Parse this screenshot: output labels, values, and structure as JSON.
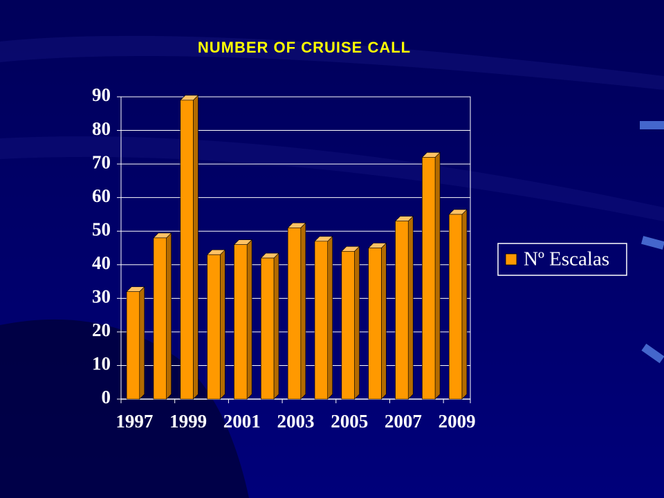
{
  "chart_data": {
    "type": "bar",
    "title": "NUMBER OF CRUISE CALL",
    "categories": [
      "1997",
      null,
      "1999",
      null,
      "2001",
      null,
      "2003",
      null,
      "2005",
      null,
      "2007",
      null,
      "2009"
    ],
    "series": [
      {
        "name": "Nº Escalas",
        "color": "#ff9900",
        "values": [
          32,
          48,
          89,
          43,
          46,
          42,
          51,
          47,
          44,
          45,
          53,
          72,
          55
        ]
      }
    ],
    "ylim": [
      0,
      90
    ],
    "yticks": [
      0,
      10,
      20,
      30,
      40,
      50,
      60,
      70,
      80,
      90
    ],
    "grid": true,
    "legend": "right"
  }
}
